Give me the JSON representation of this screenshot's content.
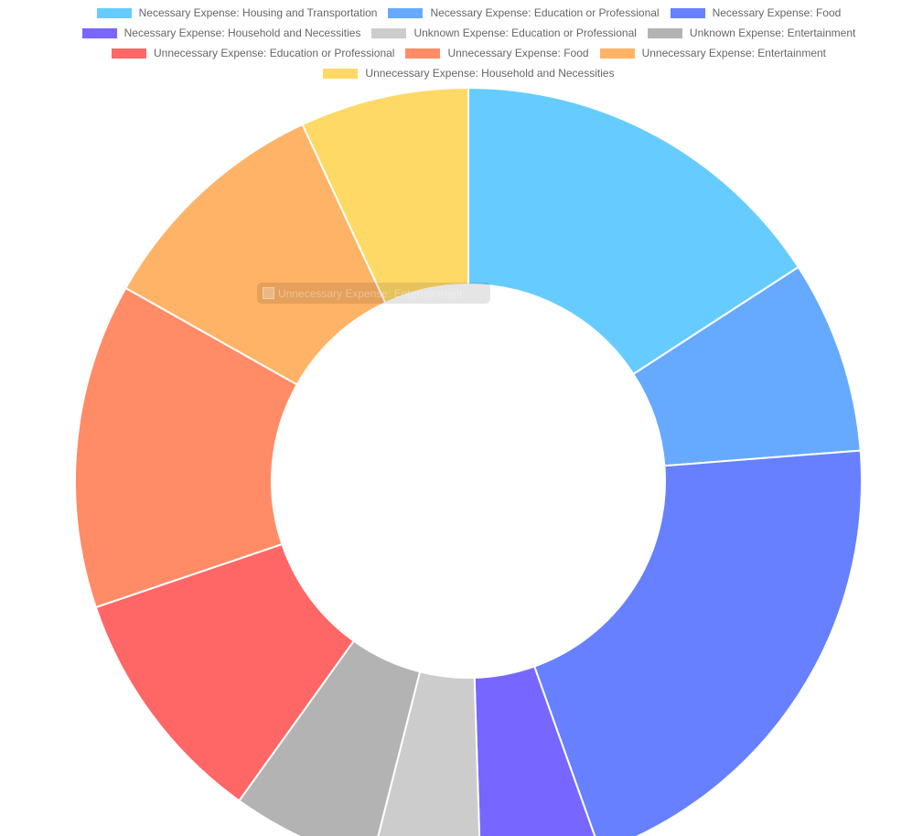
{
  "chart_data": {
    "type": "doughnut",
    "title": "",
    "legend_position": "top",
    "categories": [
      "Necessary Expense: Housing and Transportation",
      "Necessary Expense: Education or Professional",
      "Necessary Expense: Food",
      "Necessary Expense: Household and Necessities",
      "Unknown Expense: Education or Professional",
      "Unknown Expense: Entertainment",
      "Unnecessary Expense: Education or Professional",
      "Unnecessary Expense: Food",
      "Unnecessary Expense: Entertainment",
      "Unnecessary Expense: Household and Necessities"
    ],
    "values": [
      16,
      8,
      21,
      5,
      4.5,
      6,
      10,
      13.5,
      10,
      7
    ],
    "colors": [
      "#66ccff",
      "#66aaff",
      "#6680ff",
      "#7766ff",
      "#cccccc",
      "#b3b3b3",
      "#ff6666",
      "#ff8c66",
      "#ffb366",
      "#ffd966"
    ],
    "tooltip": {
      "label": "Unnecessary Expense: Entertainment"
    }
  }
}
